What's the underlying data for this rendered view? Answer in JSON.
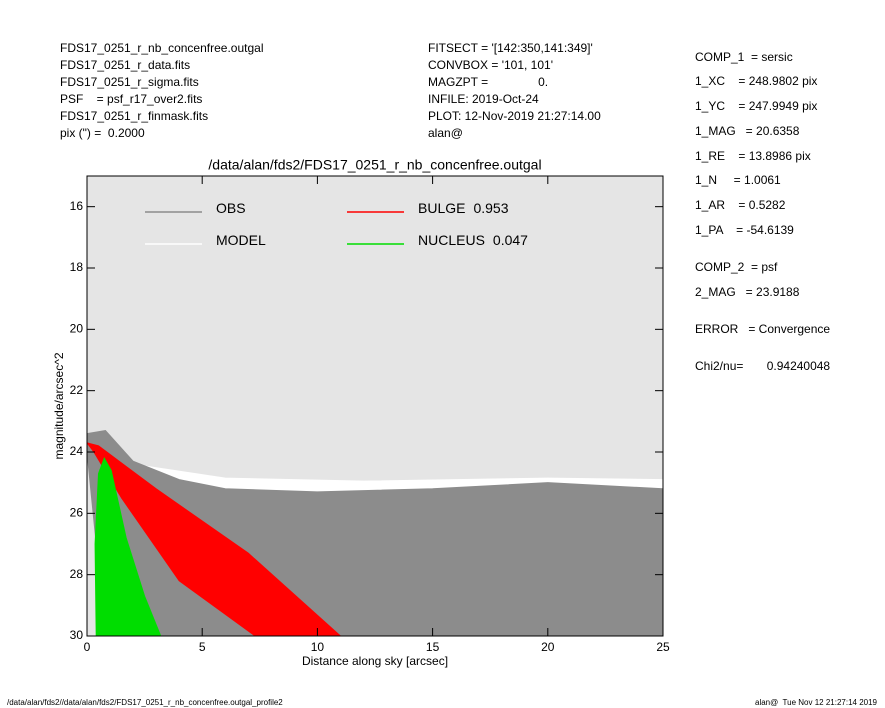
{
  "header": {
    "left": [
      "FDS17_0251_r_nb_concenfree.outgal",
      "FDS17_0251_r_data.fits",
      "FDS17_0251_r_sigma.fits",
      "PSF    = psf_r17_over2.fits",
      "FDS17_0251_r_finmask.fits",
      "pix (\") =  0.2000"
    ],
    "middle": [
      "FITSECT = '[142:350,141:349]'",
      "CONVBOX = '101, 101'",
      "MAGZPT =               0.",
      "INFILE: 2019-Oct-24",
      "PLOT: 12-Nov-2019 21:27:14.00",
      "alan@"
    ]
  },
  "parameters": [
    "COMP_1  = sersic",
    "1_XC    = 248.9802 pix",
    "1_YC    = 247.9949 pix",
    "1_MAG   = 20.6358",
    "1_RE    = 13.8986 pix",
    "1_N     = 1.0061",
    "1_AR    = 0.5282",
    "1_PA    = -54.6139",
    "COMP_2  = psf",
    "2_MAG   = 23.9188",
    "ERROR   = Convergence",
    "Chi2/nu=       0.94240048"
  ],
  "footer": {
    "left": "/data/alan/fds2//data/alan/fds2/FDS17_0251_r_nb_concenfree.outgal_profile2",
    "right": "alan@  Tue Nov 12 21:27:14 2019"
  },
  "chart_data": {
    "type": "scatter",
    "title": "/data/alan/fds2/FDS17_0251_r_nb_concenfree.outgal",
    "x_label": "Distance along sky [arcsec]",
    "y_label": "magnitude/arcsec^2",
    "xlim": [
      0,
      25
    ],
    "xticks": [
      0,
      5,
      10,
      15,
      20,
      25
    ],
    "ylim": [
      15,
      30
    ],
    "yticks": [
      16,
      18,
      20,
      22,
      24,
      26,
      28,
      30
    ],
    "y_inverted": true,
    "background": "#e5e5e5",
    "series": [
      {
        "name": "MODEL",
        "color": "#ffffff",
        "x": [
          2,
          6,
          12,
          20,
          25,
          25,
          20,
          12,
          6,
          2
        ],
        "y": [
          24.4,
          24.85,
          24.95,
          24.85,
          24.9,
          25.3,
          25.2,
          25.4,
          25.4,
          24.8
        ]
      },
      {
        "name": "OBS",
        "color": "#8c8c8c",
        "x": [
          0,
          0.8,
          2,
          4,
          6,
          10,
          15,
          20,
          25,
          25,
          0.6,
          0.4,
          0
        ],
        "y": [
          23.4,
          23.3,
          24.3,
          24.9,
          25.2,
          25.3,
          25.2,
          25.0,
          25.2,
          30,
          30,
          27,
          24
        ]
      },
      {
        "name": "BULGE",
        "fraction": 0.953,
        "color": "#ff0000",
        "x": [
          0,
          0.5,
          3,
          7,
          11,
          7.3,
          4,
          1.5,
          0.3
        ],
        "y": [
          23.7,
          23.8,
          25.2,
          27.3,
          30,
          30,
          28.2,
          25.5,
          24.0
        ]
      },
      {
        "name": "NUCLEUS",
        "fraction": 0.047,
        "color": "#00dd00",
        "x": [
          0.4,
          0.35,
          0.5,
          0.75,
          1.05,
          1.7,
          2.5,
          3.2
        ],
        "y": [
          30,
          27,
          24.7,
          24.2,
          24.6,
          26.8,
          28.7,
          30
        ]
      }
    ]
  }
}
